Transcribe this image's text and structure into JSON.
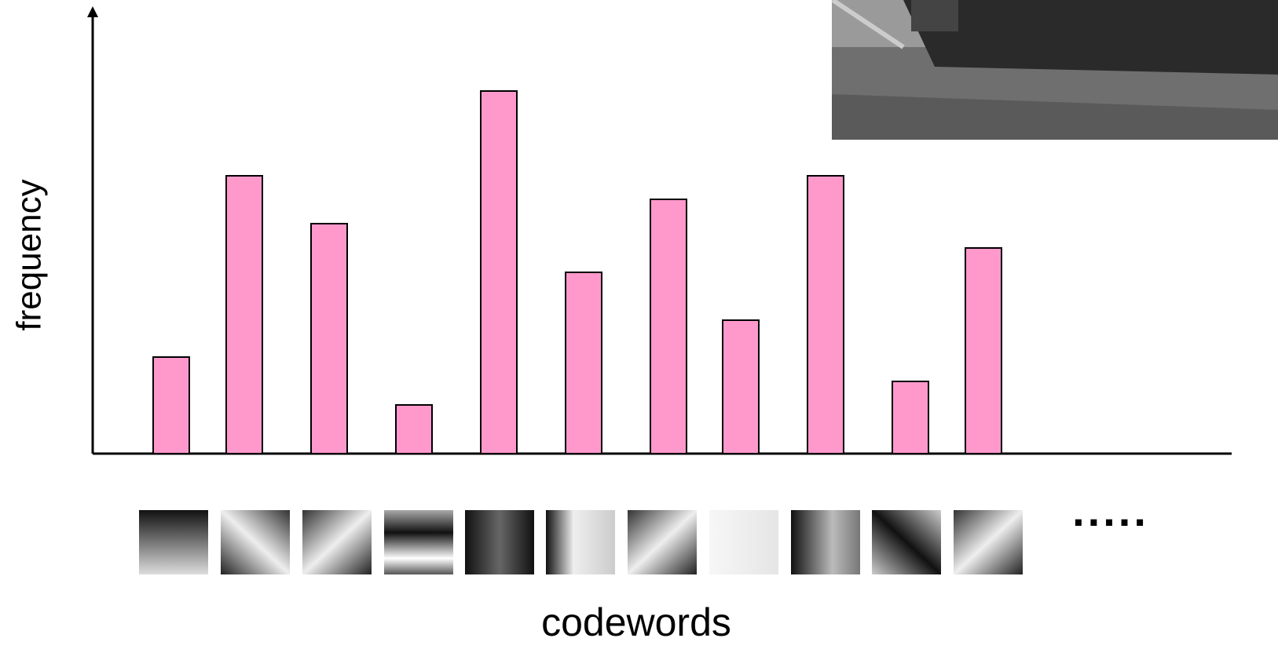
{
  "chart_data": {
    "type": "bar",
    "x_label": "codewords",
    "y_label": "frequency",
    "categories": [
      null,
      null,
      null,
      null,
      null,
      null,
      null,
      null,
      null,
      null,
      null
    ],
    "values": [
      123,
      354,
      293,
      62,
      462,
      231,
      324,
      170,
      354,
      92,
      262
    ],
    "color": "#ff99cc",
    "ylim": [
      0,
      566
    ],
    "continuation": "....."
  }
}
